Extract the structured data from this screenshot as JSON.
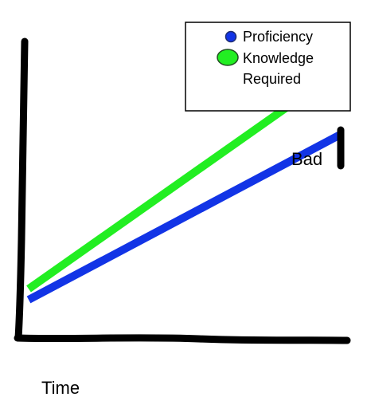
{
  "chart_data": {
    "type": "line",
    "title": "",
    "xlabel": "Time",
    "ylabel": "",
    "x": [
      0,
      1
    ],
    "xlim": [
      0,
      1
    ],
    "ylim": [
      0,
      1
    ],
    "grid": false,
    "legend_position": "top-right",
    "series": [
      {
        "name": "Proficiency",
        "color": "#1234e6",
        "values": [
          0.1,
          0.71
        ]
      },
      {
        "name": "Knowledge Required",
        "color": "#22ee22",
        "values": [
          0.14,
          0.95
        ]
      }
    ],
    "annotation": {
      "text": "Bad",
      "between": [
        "Proficiency",
        "Knowledge Required"
      ],
      "at_x": 1
    }
  }
}
